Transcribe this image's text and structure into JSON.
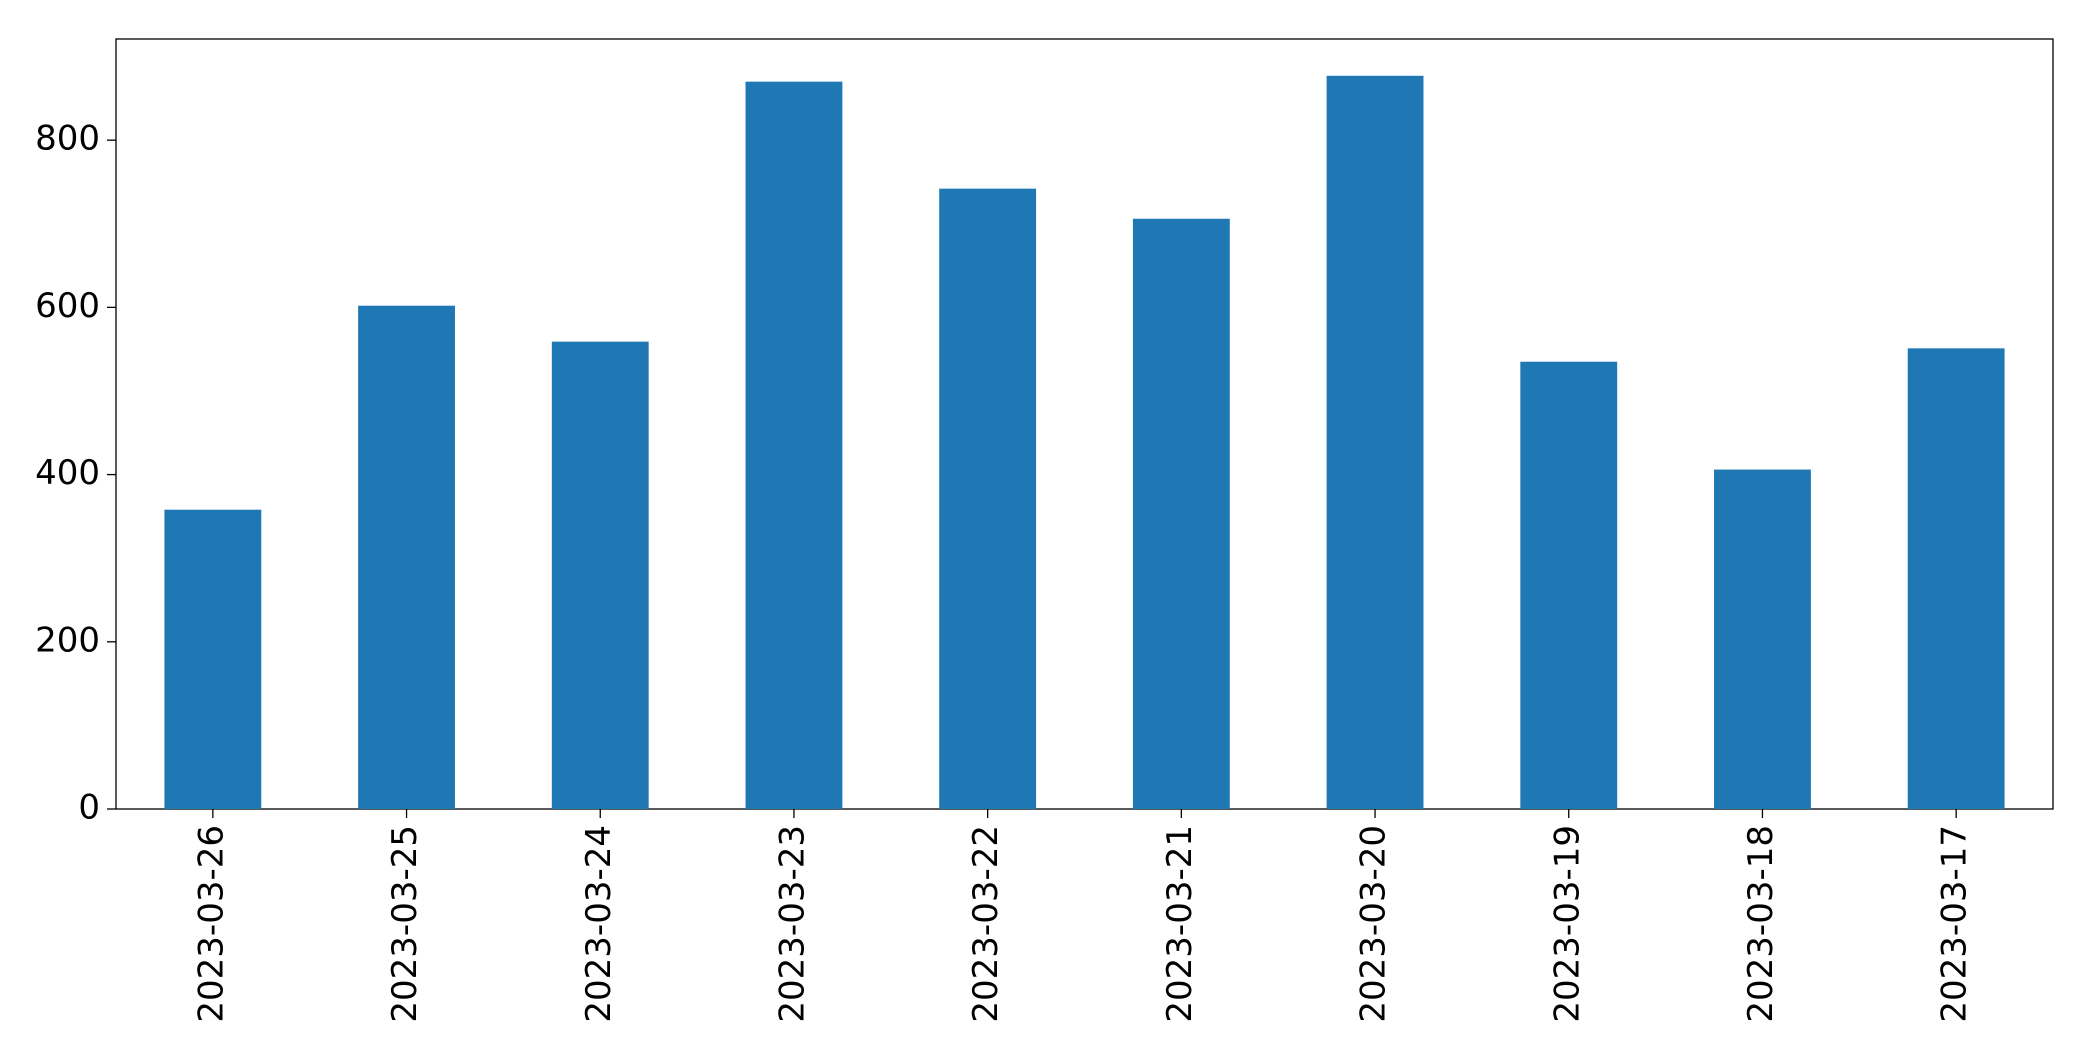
{
  "chart_data": {
    "type": "bar",
    "categories": [
      "2023-03-26",
      "2023-03-25",
      "2023-03-24",
      "2023-03-23",
      "2023-03-22",
      "2023-03-21",
      "2023-03-20",
      "2023-03-19",
      "2023-03-18",
      "2023-03-17"
    ],
    "values": [
      358,
      602,
      559,
      870,
      742,
      706,
      877,
      535,
      406,
      551
    ],
    "color": "#1f77b4",
    "ylim": [
      0,
      921
    ],
    "yticks": [
      0,
      200,
      400,
      600,
      800
    ],
    "grid": false
  }
}
